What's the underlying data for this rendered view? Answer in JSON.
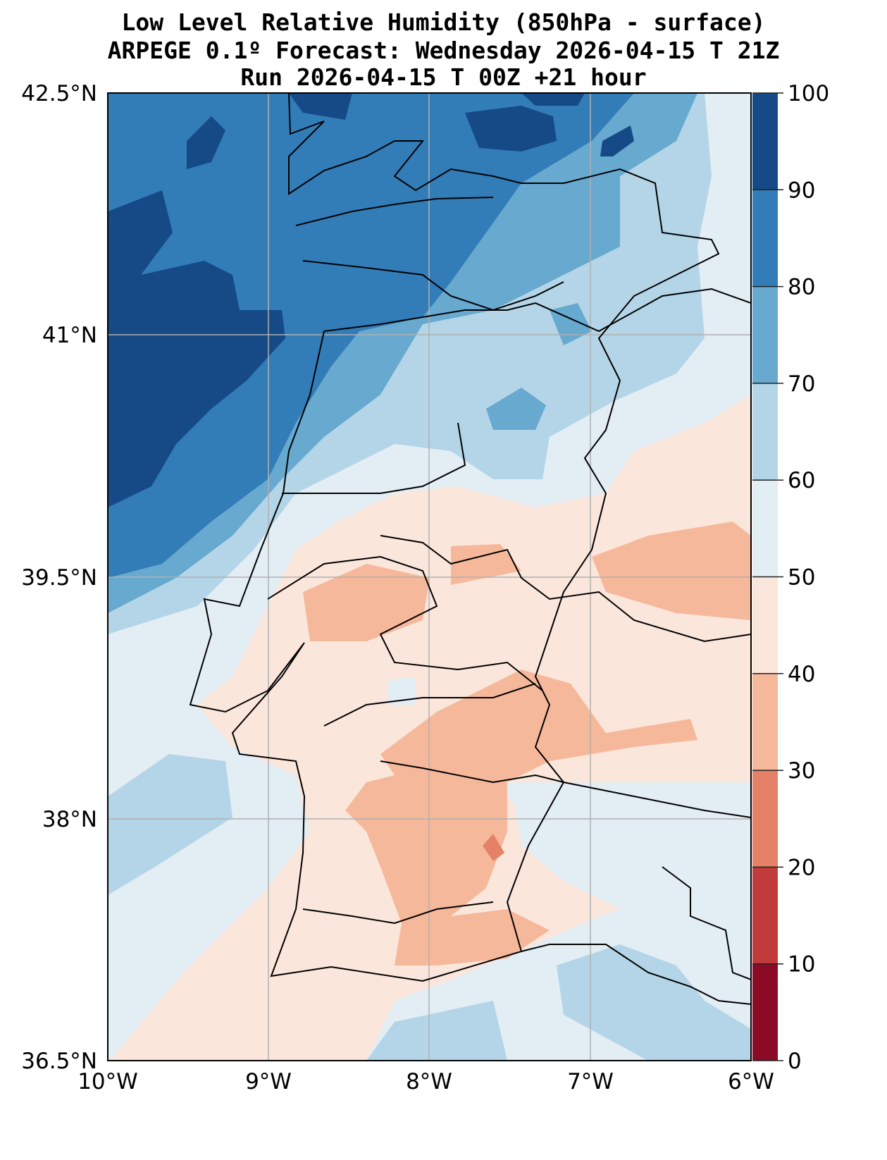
{
  "title": {
    "line1": "Low Level Relative Humidity (850hPa - surface)",
    "line2": "ARPEGE 0.1º Forecast: Wednesday 2026-04-15 T 21Z",
    "line3": "Run 2026-04-15 T 00Z +21 hour"
  },
  "map": {
    "lon_range": [
      -10,
      -6
    ],
    "lat_range": [
      36.5,
      42.5
    ],
    "x_ticks": [
      "10°W",
      "9°W",
      "8°W",
      "7°W",
      "6°W"
    ],
    "y_ticks": [
      "42.5°N",
      "41°N",
      "39.5°N",
      "38°N",
      "36.5°N"
    ],
    "gridlines": true
  },
  "colorbar": {
    "levels": [
      0,
      10,
      20,
      30,
      40,
      50,
      60,
      70,
      80,
      90,
      100
    ],
    "labels": [
      "0",
      "10",
      "20",
      "30",
      "40",
      "50",
      "60",
      "70",
      "80",
      "90",
      "100"
    ],
    "colors": [
      "#8b0a26",
      "#c23b3c",
      "#e48167",
      "#f6b89b",
      "#fbe6dc",
      "#e3edf4",
      "#b3d5e7",
      "#67a9cf",
      "#327cb8",
      "#154a87"
    ]
  }
}
